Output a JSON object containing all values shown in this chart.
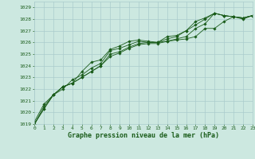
{
  "title": "Graphe pression niveau de la mer (hPa)",
  "background_color": "#cce8e0",
  "grid_color": "#aacccc",
  "line_color": "#1a5c1a",
  "xlim": [
    0,
    23
  ],
  "ylim": [
    1019,
    1029.5
  ],
  "yticks": [
    1019,
    1020,
    1021,
    1022,
    1023,
    1024,
    1025,
    1026,
    1027,
    1028,
    1029
  ],
  "xticks": [
    0,
    1,
    2,
    3,
    4,
    5,
    6,
    7,
    8,
    9,
    10,
    11,
    12,
    13,
    14,
    15,
    16,
    17,
    18,
    19,
    20,
    21,
    22,
    23
  ],
  "series": [
    [
      1019.2,
      1020.7,
      1021.5,
      1022.0,
      1022.8,
      1023.2,
      1023.8,
      1024.2,
      1025.3,
      1025.5,
      1025.8,
      1026.1,
      1026.0,
      1026.0,
      1026.5,
      1026.6,
      1027.0,
      1027.8,
      1028.1,
      1028.5,
      1028.3,
      1028.2,
      1028.1,
      1028.3
    ],
    [
      1019.0,
      1020.5,
      1021.5,
      1022.2,
      1022.5,
      1023.5,
      1024.3,
      1024.5,
      1025.4,
      1025.7,
      1026.1,
      1026.2,
      1026.1,
      1026.0,
      1026.1,
      1026.3,
      1026.5,
      1027.2,
      1027.6,
      1028.5,
      1028.3,
      1028.2,
      1028.1,
      1028.3
    ],
    [
      1019.0,
      1020.3,
      1021.5,
      1022.2,
      1022.5,
      1023.0,
      1023.5,
      1024.0,
      1025.0,
      1025.2,
      1025.6,
      1025.9,
      1026.0,
      1026.0,
      1026.3,
      1026.5,
      1027.0,
      1027.5,
      1028.0,
      1028.5,
      1028.3,
      1028.2,
      1028.0,
      1028.3
    ],
    [
      1019.0,
      1020.3,
      1021.5,
      1022.2,
      1022.5,
      1023.0,
      1023.5,
      1024.0,
      1024.8,
      1025.1,
      1025.5,
      1025.8,
      1025.9,
      1025.9,
      1026.1,
      1026.2,
      1026.3,
      1026.5,
      1027.2,
      1027.2,
      1027.8,
      1028.2,
      1028.1,
      1028.3
    ]
  ]
}
